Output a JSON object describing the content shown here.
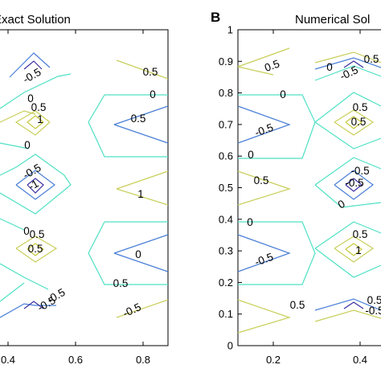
{
  "colors": {
    "level_1": "#c8c83c",
    "level_0_5": "#c9cf5b",
    "level_0": "#4fe0c4",
    "level_neg_0_5": "#4a7fd6",
    "level_neg_1": "#3a2fa0"
  },
  "chart_data": [
    {
      "type": "contour",
      "title": "Exact Solution",
      "xlabel": "",
      "ylabel": "",
      "xlim": [
        0.2,
        0.9
      ],
      "ylim": [
        0,
        1
      ],
      "x_tick_labels": [
        "0.4",
        "0.6",
        "0.8"
      ],
      "y_tick_labels": [],
      "contour_levels": [
        1,
        0.5,
        0,
        -0.5,
        -1
      ],
      "contour_labels": [
        "-0.5",
        "0.5",
        "1",
        "0",
        "0",
        "-0.5",
        "-1",
        "-0.5",
        "0.5",
        "0",
        "-0.5",
        "0",
        "0.5",
        "0.5",
        "1",
        "0.5",
        "0",
        "-0.5",
        "0.5"
      ]
    },
    {
      "type": "contour",
      "panel_label": "B",
      "title": "Numerical Sol",
      "xlabel": "",
      "ylabel": "",
      "xlim": [
        0.1,
        0.5
      ],
      "ylim": [
        0,
        1
      ],
      "x_tick_labels": [
        "0.2",
        "0.4"
      ],
      "y_tick_labels": [
        "0",
        "0.1",
        "0.2",
        "0.3",
        "0.4",
        "0.5",
        "0.6",
        "0.7",
        "0.8",
        "0.9",
        "1"
      ],
      "contour_levels": [
        1,
        0.5,
        0,
        -0.5,
        -1
      ],
      "contour_labels": [
        "0.5",
        "0",
        "-0.5",
        "0.5",
        "0",
        "-0.5",
        "0",
        "0.5",
        "0.5",
        "-0.5",
        "0.5",
        "1",
        "-0.5",
        "0",
        "-0.5",
        "0.5",
        "0.5",
        "-0.5",
        "0",
        "0.5"
      ]
    }
  ]
}
